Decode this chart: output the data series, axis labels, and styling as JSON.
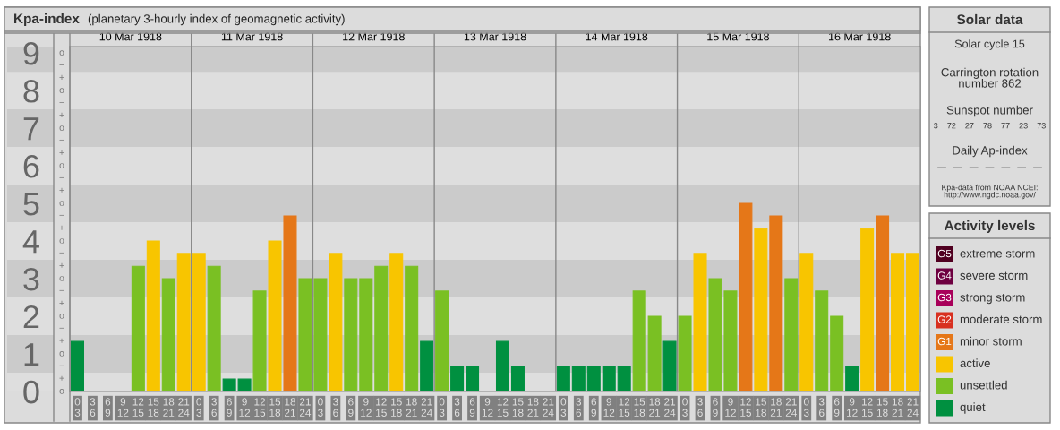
{
  "chart_data": [
    {
      "type": "bar",
      "title": "Kpa-index",
      "subtitle": "(planetary 3-hourly index of geomagnetic activity)",
      "categories": [
        "0\n3",
        "3\n6",
        "6\n9",
        "9\n12",
        "12\n15",
        "15\n18",
        "18\n21",
        "21\n24",
        "0\n3",
        "3\n6",
        "6\n9",
        "9\n12",
        "12\n15",
        "15\n18",
        "18\n21",
        "21\n24",
        "0\n3",
        "3\n6",
        "6\n9",
        "9\n12",
        "12\n15",
        "15\n18",
        "18\n21",
        "21\n24",
        "0\n3",
        "3\n6",
        "6\n9",
        "9\n12",
        "12\n15",
        "15\n18",
        "18\n21",
        "21\n24",
        "0\n3",
        "3\n6",
        "6\n9",
        "9\n12",
        "12\n15",
        "15\n18",
        "18\n21",
        "21\n24",
        "0\n3",
        "3\n6",
        "6\n9",
        "9\n12",
        "12\n15",
        "15\n18",
        "18\n21",
        "21\n24",
        "0\n3",
        "3\n6",
        "6\n9",
        "9\n12",
        "12\n15",
        "15\n18",
        "18\n21",
        "21\n24"
      ],
      "values": [
        1.33,
        0,
        0,
        0,
        3.33,
        4,
        3,
        3.67,
        3.67,
        3.33,
        0.33,
        0.33,
        2.67,
        4,
        4.67,
        3,
        3,
        3.67,
        3,
        3,
        3.33,
        3.67,
        3.33,
        1.33,
        2.67,
        0.67,
        0.67,
        0,
        1.33,
        0.67,
        0,
        0,
        0.67,
        0.67,
        0.67,
        0.67,
        0.67,
        2.67,
        2,
        1.33,
        2,
        3.67,
        3,
        2.67,
        5,
        4.33,
        4.67,
        3,
        3.67,
        2.67,
        2,
        0.67,
        4.33,
        4.67,
        3.67,
        3.67
      ],
      "colors": [
        "#009040",
        "#009040",
        "#009040",
        "#009040",
        "#7ac023",
        "#f8c500",
        "#7ac023",
        "#f8c500",
        "#f8c500",
        "#7ac023",
        "#009040",
        "#009040",
        "#7ac023",
        "#f8c500",
        "#e57718",
        "#7ac023",
        "#7ac023",
        "#f8c500",
        "#7ac023",
        "#7ac023",
        "#7ac023",
        "#f8c500",
        "#7ac023",
        "#009040",
        "#7ac023",
        "#009040",
        "#009040",
        "#009040",
        "#009040",
        "#009040",
        "#009040",
        "#009040",
        "#009040",
        "#009040",
        "#009040",
        "#009040",
        "#009040",
        "#7ac023",
        "#7ac023",
        "#009040",
        "#7ac023",
        "#f8c500",
        "#7ac023",
        "#7ac023",
        "#e57718",
        "#f8c500",
        "#e57718",
        "#7ac023",
        "#f8c500",
        "#7ac023",
        "#7ac023",
        "#009040",
        "#f8c500",
        "#e57718",
        "#f8c500",
        "#f8c500"
      ],
      "ylim": [
        0,
        9.17
      ],
      "yticks": [
        0,
        1,
        2,
        3,
        4,
        5,
        6,
        7,
        8,
        9
      ],
      "annotations": [
        "o",
        "+",
        "−",
        "o",
        "+",
        "−",
        "o",
        "+",
        "−",
        "o",
        "+",
        "−",
        "o",
        "+",
        "−",
        "o",
        "+",
        "−",
        "o",
        "+",
        "−",
        "o",
        "+",
        "−",
        "o",
        "+",
        "−",
        "o"
      ],
      "bands": [
        {
          "axis": "y",
          "from": 0.5,
          "to": 1.5,
          "color": "#cbcbcb"
        },
        {
          "axis": "y",
          "from": 2.5,
          "to": 3.5,
          "color": "#cbcbcb"
        },
        {
          "axis": "y",
          "from": 4.5,
          "to": 5.5,
          "color": "#cbcbcb"
        },
        {
          "axis": "y",
          "from": 6.5,
          "to": 7.5,
          "color": "#cbcbcb"
        },
        {
          "axis": "y",
          "from": 8.5,
          "to": 9.17,
          "color": "#cbcbcb"
        }
      ],
      "x2lim": [
        "1918-03-10T00:00",
        "1918-03-17T00:00"
      ],
      "x2ticks": [
        {
          "value": "1918-03-10T12:00",
          "label": "10 Mar 1918"
        },
        {
          "value": "1918-03-11T12:00",
          "label": "11 Mar 1918"
        },
        {
          "value": "1918-03-12T12:00",
          "label": "12 Mar 1918"
        },
        {
          "value": "1918-03-13T12:00",
          "label": "13 Mar 1918"
        },
        {
          "value": "1918-03-14T12:00",
          "label": "14 Mar 1918"
        },
        {
          "value": "1918-03-15T12:00",
          "label": "15 Mar 1918"
        },
        {
          "value": "1918-03-16T12:00",
          "label": "16 Mar 1918"
        }
      ],
      "grid": false
    },
    {
      "type": "other",
      "title": "Solar data",
      "annotations": [
        "Solar cycle 15",
        "Carrington rotation\nnumber 862",
        "Sunspot number",
        "3    72    27    78    77    23    73",
        "Daily Ap-index",
        "—   —   —   —   —   —   —",
        "Kpa-data from NOAA NCEI:\nhttp://www.ngdc.noaa.gov/"
      ]
    },
    {
      "type": "other",
      "title": "Activity levels",
      "categories": [
        "extreme storm",
        "severe storm",
        "strong storm",
        "moderate storm",
        "minor storm",
        "active",
        "unsettled",
        "quiet"
      ],
      "colors": [
        "#500020",
        "#6e0040",
        "#a8005a",
        "#d83020",
        "#e57718",
        "#f8c500",
        "#7ac023",
        "#009040"
      ],
      "annotations": [
        "G5",
        "G4",
        "G3",
        "G2",
        "G1"
      ]
    }
  ]
}
